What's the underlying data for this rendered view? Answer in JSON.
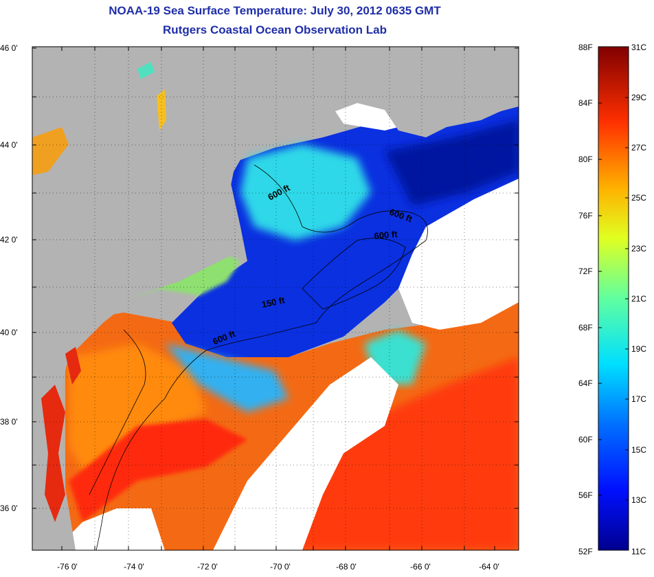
{
  "title": {
    "line1": "NOAA-19 Sea Surface Temperature:  July 30, 2012 0635 GMT",
    "line2": "Rutgers Coastal Ocean Observation Lab"
  },
  "map": {
    "latitude_labels": [
      "46 0'",
      "44 0'",
      "42 0'",
      "40 0'",
      "38 0'",
      "36 0'"
    ],
    "longitude_labels": [
      "-76 0'",
      "-74 0'",
      "-72 0'",
      "-70 0'",
      "-68 0'",
      "-66 0'",
      "-64 0'"
    ],
    "contour_labels": [
      "600 ft",
      "600 ft",
      "600 ft",
      "150 ft",
      "600 ft"
    ],
    "colors": {
      "land": "#b3b3b3",
      "cloud": "#ffffff",
      "cold": "#0a2ee0",
      "warm": "#f05a10"
    }
  },
  "colorbar": {
    "fahrenheit_labels": [
      "88F",
      "84F",
      "80F",
      "76F",
      "72F",
      "68F",
      "64F",
      "60F",
      "56F",
      "52F"
    ],
    "celsius_labels": [
      "31C",
      "29C",
      "27C",
      "25C",
      "23C",
      "21C",
      "19C",
      "17C",
      "15C",
      "13C",
      "11C"
    ],
    "range_f": [
      52,
      88
    ],
    "range_c": [
      11,
      31
    ]
  }
}
